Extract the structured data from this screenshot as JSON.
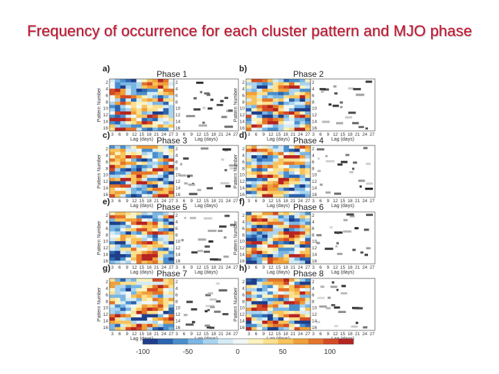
{
  "title": "Frequency of occurrence for each cluster pattern and MJO phase",
  "chart_data": {
    "type": "heatmap",
    "panels": [
      {
        "label": "a)",
        "title": "Phase 1"
      },
      {
        "label": "b)",
        "title": "Phase 2"
      },
      {
        "label": "c)",
        "title": "Phase 3"
      },
      {
        "label": "d)",
        "title": "Phase 4"
      },
      {
        "label": "e)",
        "title": "Phase 5"
      },
      {
        "label": "f)",
        "title": "Phase 6"
      },
      {
        "label": "g)",
        "title": "Phase 7"
      },
      {
        "label": "h)",
        "title": "Phase 8"
      }
    ],
    "ylabel": "Pattern Number",
    "xlabel": "Lag (days)",
    "yticks": [
      "2",
      "4",
      "6",
      "8",
      "10",
      "12",
      "14",
      "16"
    ],
    "xticks": [
      "3",
      "6",
      "9",
      "12",
      "15",
      "18",
      "21",
      "24",
      "27"
    ],
    "colorbar": {
      "ticks": [
        "-100",
        "-50",
        "0",
        "50",
        "100"
      ],
      "range": [
        -100,
        100
      ],
      "colors": [
        "#1f3e8a",
        "#2c64b0",
        "#4a8fcc",
        "#7bb6e3",
        "#a9d3ef",
        "#d4ebf6",
        "#f2f7f6",
        "#fbf2bf",
        "#fce08e",
        "#f8c35b",
        "#f0a03a",
        "#e4752a",
        "#d44a25",
        "#b52422"
      ]
    },
    "grid": false
  }
}
